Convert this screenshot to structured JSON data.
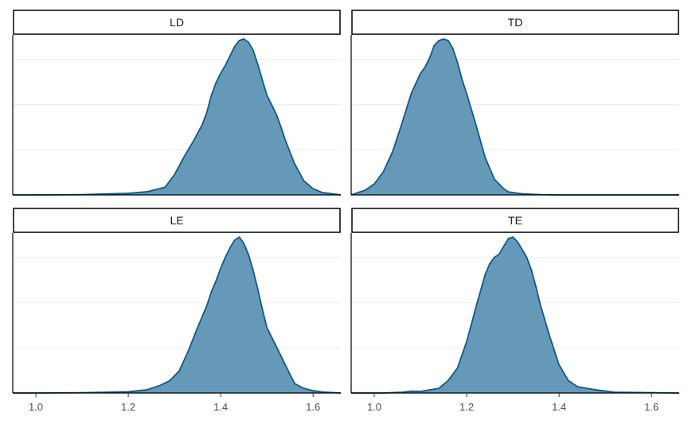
{
  "chart_data": {
    "type": "area",
    "subtype": "faceted density",
    "title": "",
    "xlabel": "",
    "ylabel": "",
    "xlim": [
      0.95,
      1.66
    ],
    "x_ticks": [
      1.0,
      1.2,
      1.4,
      1.6
    ],
    "x_tick_labels": [
      "1.0",
      "1.2",
      "1.4",
      "1.6"
    ],
    "y_ticks_shown": false,
    "grid": "horizontal",
    "colors": {
      "fill": "#6699b7",
      "line": "#0f5a8c",
      "strip_border": "#000000",
      "grid": "#ebebeb"
    },
    "panels": [
      {
        "label": "LD",
        "x": [
          0.95,
          1.0,
          1.1,
          1.2,
          1.24,
          1.28,
          1.3,
          1.32,
          1.34,
          1.36,
          1.37,
          1.38,
          1.39,
          1.4,
          1.41,
          1.42,
          1.43,
          1.44,
          1.45,
          1.46,
          1.47,
          1.48,
          1.49,
          1.5,
          1.51,
          1.52,
          1.53,
          1.54,
          1.56,
          1.58,
          1.6,
          1.62,
          1.66
        ],
        "y": [
          0.0,
          0.0,
          0.002,
          0.01,
          0.02,
          0.05,
          0.13,
          0.24,
          0.34,
          0.45,
          0.53,
          0.64,
          0.72,
          0.78,
          0.83,
          0.89,
          0.95,
          0.99,
          1.0,
          0.98,
          0.93,
          0.84,
          0.74,
          0.64,
          0.58,
          0.52,
          0.44,
          0.35,
          0.2,
          0.09,
          0.04,
          0.015,
          0.0
        ]
      },
      {
        "label": "TD",
        "x": [
          0.95,
          0.98,
          1.0,
          1.02,
          1.04,
          1.06,
          1.08,
          1.1,
          1.11,
          1.12,
          1.13,
          1.14,
          1.15,
          1.16,
          1.17,
          1.18,
          1.19,
          1.2,
          1.22,
          1.24,
          1.26,
          1.28,
          1.29,
          1.3,
          1.32,
          1.36,
          1.4,
          1.66
        ],
        "y": [
          0.0,
          0.03,
          0.07,
          0.15,
          0.28,
          0.46,
          0.65,
          0.78,
          0.82,
          0.88,
          0.96,
          0.99,
          1.0,
          0.99,
          0.94,
          0.85,
          0.74,
          0.65,
          0.45,
          0.24,
          0.1,
          0.04,
          0.02,
          0.015,
          0.007,
          0.002,
          0.0,
          0.0
        ]
      },
      {
        "label": "LE",
        "x": [
          0.95,
          1.0,
          1.1,
          1.2,
          1.24,
          1.27,
          1.29,
          1.31,
          1.33,
          1.35,
          1.37,
          1.38,
          1.39,
          1.4,
          1.41,
          1.42,
          1.43,
          1.44,
          1.45,
          1.46,
          1.47,
          1.48,
          1.49,
          1.5,
          1.52,
          1.54,
          1.56,
          1.58,
          1.6,
          1.62,
          1.66
        ],
        "y": [
          0.0,
          0.0,
          0.002,
          0.008,
          0.02,
          0.05,
          0.08,
          0.14,
          0.27,
          0.42,
          0.56,
          0.65,
          0.72,
          0.8,
          0.87,
          0.93,
          0.98,
          1.0,
          0.96,
          0.89,
          0.79,
          0.67,
          0.54,
          0.42,
          0.3,
          0.18,
          0.06,
          0.03,
          0.015,
          0.006,
          0.0
        ]
      },
      {
        "label": "TE",
        "x": [
          0.95,
          1.02,
          1.06,
          1.08,
          1.1,
          1.14,
          1.16,
          1.18,
          1.2,
          1.22,
          1.24,
          1.25,
          1.26,
          1.27,
          1.28,
          1.29,
          1.3,
          1.31,
          1.32,
          1.33,
          1.34,
          1.35,
          1.36,
          1.38,
          1.4,
          1.42,
          1.44,
          1.48,
          1.52,
          1.66
        ],
        "y": [
          0.0,
          0.0,
          0.005,
          0.012,
          0.01,
          0.03,
          0.08,
          0.16,
          0.33,
          0.55,
          0.76,
          0.83,
          0.87,
          0.89,
          0.94,
          0.99,
          1.0,
          0.97,
          0.92,
          0.87,
          0.79,
          0.68,
          0.56,
          0.36,
          0.18,
          0.08,
          0.04,
          0.02,
          0.005,
          0.0
        ]
      }
    ]
  }
}
